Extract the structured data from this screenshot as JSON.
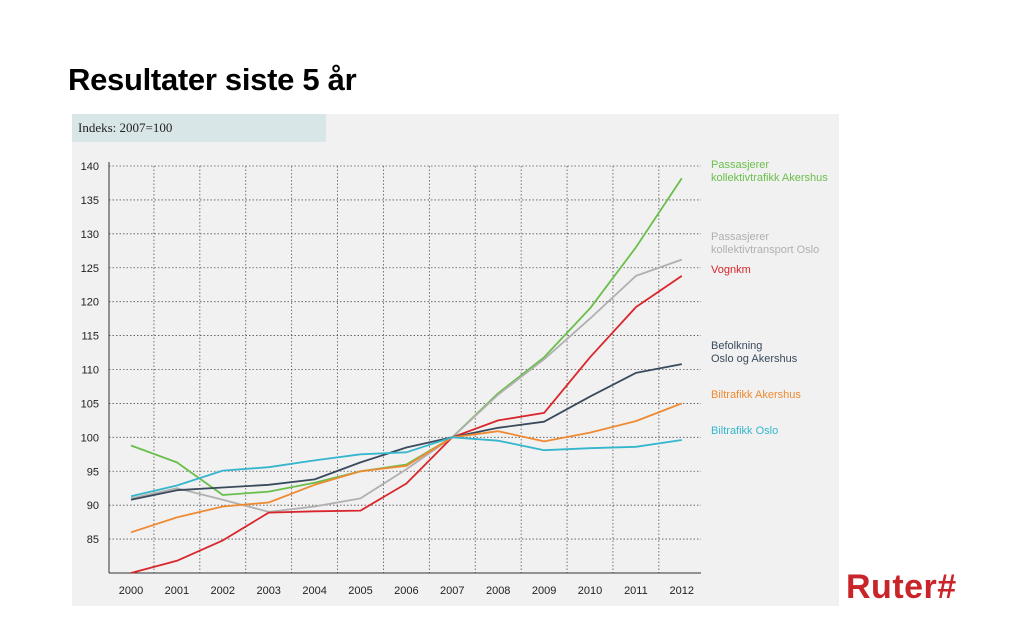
{
  "slide": {
    "title": "Resultater siste 5 år",
    "logo_text": "Ruter#",
    "logo_color": "#c8242a"
  },
  "chart_data": {
    "type": "line",
    "subtitle": "Indeks: 2007=100",
    "x": [
      "2000",
      "2001",
      "2002",
      "2003",
      "2004",
      "2005",
      "2006",
      "2007",
      "2008",
      "2009",
      "2010",
      "2011",
      "2012"
    ],
    "ylim": [
      80,
      140
    ],
    "yticks": [
      85,
      90,
      95,
      100,
      105,
      110,
      115,
      120,
      125,
      130,
      135,
      140
    ],
    "grid": true,
    "legend_placement": "right, at line ends",
    "series": [
      {
        "name": "Passasjerer\nkollektivtrafikk Akershus",
        "color": "#6abf4b",
        "values": [
          98.8,
          96.3,
          91.5,
          92.0,
          93.3,
          95.0,
          96.0,
          100.0,
          106.5,
          111.8,
          119.0,
          128.0,
          138.2
        ]
      },
      {
        "name": "Passasjerer\nkollektivtransport Oslo",
        "color": "#b0b0b0",
        "values": [
          91.0,
          92.5,
          90.8,
          89.0,
          89.8,
          91.0,
          95.3,
          100.0,
          106.3,
          111.5,
          117.5,
          123.8,
          126.2
        ]
      },
      {
        "name": "Vognkm",
        "color": "#d9262c",
        "values": [
          80.0,
          81.8,
          84.8,
          88.9,
          89.1,
          89.2,
          93.2,
          100.0,
          102.5,
          103.6,
          111.8,
          119.2,
          123.8
        ]
      },
      {
        "name": "Befolkning\nOslo og Akershus",
        "color": "#3a4a5c",
        "values": [
          90.8,
          92.2,
          92.6,
          93.0,
          93.8,
          96.3,
          98.5,
          100.0,
          101.4,
          102.3,
          106.0,
          109.5,
          110.8
        ]
      },
      {
        "name": "Biltrafikk Akershus",
        "color": "#ee8a33",
        "values": [
          86.0,
          88.2,
          89.8,
          90.4,
          93.0,
          95.0,
          95.8,
          100.0,
          100.9,
          99.4,
          100.7,
          102.4,
          105.0
        ]
      },
      {
        "name": "Biltrafikk Oslo",
        "color": "#35b6cc",
        "values": [
          91.3,
          92.9,
          95.1,
          95.6,
          96.6,
          97.5,
          97.8,
          100.0,
          99.5,
          98.1,
          98.4,
          98.6,
          99.6
        ]
      }
    ]
  }
}
